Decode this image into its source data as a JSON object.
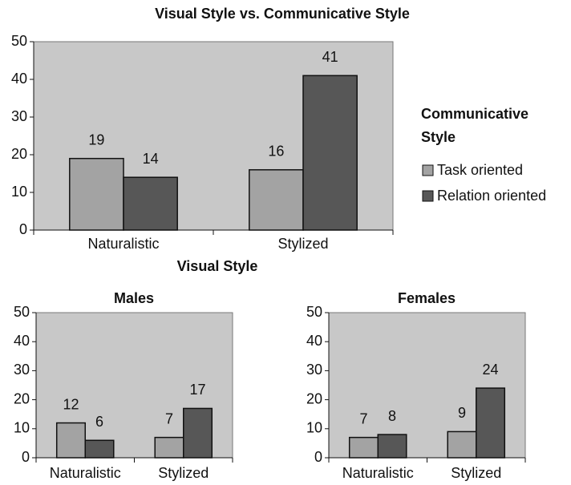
{
  "chart_data": [
    {
      "type": "bar",
      "title": "Visual Style vs. Communicative Style",
      "x_label": "Visual Style",
      "legend_title": "Communicative Style",
      "legend": "right",
      "categories": [
        "Naturalistic",
        "Stylized"
      ],
      "series": [
        {
          "name": "Task oriented",
          "color": "#a3a3a3",
          "values": [
            19,
            16
          ]
        },
        {
          "name": "Relation oriented",
          "color": "#575757",
          "values": [
            14,
            41
          ]
        }
      ],
      "ylim": [
        0,
        50
      ],
      "yticks": [
        0,
        10,
        20,
        30,
        40,
        50
      ]
    },
    {
      "type": "bar",
      "title": "Males",
      "categories": [
        "Naturalistic",
        "Stylized"
      ],
      "series": [
        {
          "name": "Task oriented",
          "color": "#a3a3a3",
          "values": [
            12,
            7
          ]
        },
        {
          "name": "Relation oriented",
          "color": "#575757",
          "values": [
            6,
            17
          ]
        }
      ],
      "ylim": [
        0,
        50
      ],
      "yticks": [
        0,
        10,
        20,
        30,
        40,
        50
      ]
    },
    {
      "type": "bar",
      "title": "Females",
      "categories": [
        "Naturalistic",
        "Stylized"
      ],
      "series": [
        {
          "name": "Task oriented",
          "color": "#a3a3a3",
          "values": [
            7,
            9
          ]
        },
        {
          "name": "Relation oriented",
          "color": "#575757",
          "values": [
            8,
            24
          ]
        }
      ],
      "ylim": [
        0,
        50
      ],
      "yticks": [
        0,
        10,
        20,
        30,
        40,
        50
      ]
    }
  ]
}
